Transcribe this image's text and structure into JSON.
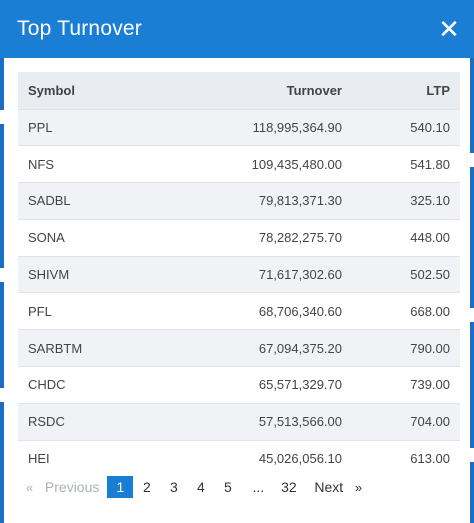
{
  "modal": {
    "title": "Top Turnover",
    "close_label": "✕"
  },
  "table": {
    "headers": {
      "symbol": "Symbol",
      "turnover": "Turnover",
      "ltp": "LTP"
    },
    "rows": [
      {
        "symbol": "PPL",
        "turnover": "118,995,364.90",
        "ltp": "540.10"
      },
      {
        "symbol": "NFS",
        "turnover": "109,435,480.00",
        "ltp": "541.80"
      },
      {
        "symbol": "SADBL",
        "turnover": "79,813,371.30",
        "ltp": "325.10"
      },
      {
        "symbol": "SONA",
        "turnover": "78,282,275.70",
        "ltp": "448.00"
      },
      {
        "symbol": "SHIVM",
        "turnover": "71,617,302.60",
        "ltp": "502.50"
      },
      {
        "symbol": "PFL",
        "turnover": "68,706,340.60",
        "ltp": "668.00"
      },
      {
        "symbol": "SARBTM",
        "turnover": "67,094,375.20",
        "ltp": "790.00"
      },
      {
        "symbol": "CHDC",
        "turnover": "65,571,329.70",
        "ltp": "739.00"
      },
      {
        "symbol": "RSDC",
        "turnover": "57,513,566.00",
        "ltp": "704.00"
      },
      {
        "symbol": "HEI",
        "turnover": "45,026,056.10",
        "ltp": "613.00"
      }
    ]
  },
  "pagination": {
    "prev_icon": "«",
    "prev_label": "Previous",
    "pages": [
      "1",
      "2",
      "3",
      "4",
      "5"
    ],
    "ellipsis": "...",
    "last_page": "32",
    "next_label": "Next",
    "next_icon": "»",
    "current_page": "1"
  },
  "colors": {
    "header_bg": "#1a7fd4",
    "active_page_bg": "#1a7fd4",
    "row_alt_bg": "#f0f2f5"
  }
}
